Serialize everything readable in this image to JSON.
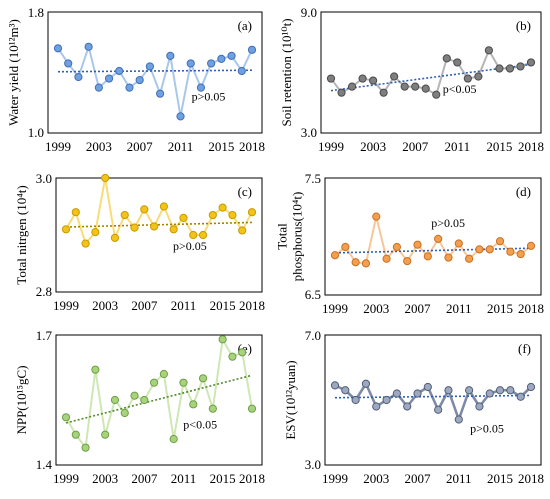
{
  "figure": {
    "x_start": "1999",
    "x_end": "2018"
  },
  "chart_data": [
    {
      "type": "line",
      "panel": "(a)",
      "ylabel": "Water yield (10¹²m³)",
      "ylim": [
        1.0,
        1.8
      ],
      "yticks": [
        "1.8",
        "1.0"
      ],
      "xticks": [
        "1999",
        "2003",
        "2007",
        "2011",
        "2015",
        "2018"
      ],
      "x": [
        1999,
        2000,
        2001,
        2002,
        2003,
        2004,
        2005,
        2006,
        2007,
        2008,
        2009,
        2010,
        2011,
        2012,
        2013,
        2014,
        2015,
        2016,
        2017,
        2018
      ],
      "y": [
        1.56,
        1.46,
        1.37,
        1.57,
        1.3,
        1.36,
        1.41,
        1.3,
        1.35,
        1.44,
        1.26,
        1.51,
        1.11,
        1.46,
        1.3,
        1.46,
        1.49,
        1.51,
        1.41,
        1.55
      ],
      "trend": [
        1.405,
        1.415
      ],
      "annotation": "p>0.05",
      "colors": {
        "marker_fill": "#6fa0e0",
        "marker_edge": "#3f6fb8",
        "line": "#a9c7ea",
        "trend": "#2f5fb3"
      }
    },
    {
      "type": "line",
      "panel": "(b)",
      "ylabel": "Soil retention (10¹⁰t)",
      "ylim": [
        3.0,
        9.0
      ],
      "yticks": [
        "9.0",
        "3.0"
      ],
      "xticks": [
        "1999",
        "2003",
        "2007",
        "2011",
        "2015",
        "2018"
      ],
      "x": [
        1999,
        2000,
        2001,
        2002,
        2003,
        2004,
        2005,
        2006,
        2007,
        2008,
        2009,
        2010,
        2011,
        2012,
        2013,
        2014,
        2015,
        2016,
        2017,
        2018
      ],
      "y": [
        5.7,
        5.0,
        5.3,
        5.7,
        5.6,
        5.0,
        5.8,
        5.3,
        5.3,
        5.2,
        4.9,
        6.7,
        6.5,
        5.7,
        5.8,
        7.1,
        6.2,
        6.2,
        6.3,
        6.5
      ],
      "trend": [
        5.1,
        6.4
      ],
      "annotation": "p<0.05",
      "colors": {
        "marker_fill": "#7f7f7f",
        "marker_edge": "#4a4a4a",
        "line": "#b5b5b5",
        "trend": "#2f5fb3"
      }
    },
    {
      "type": "line",
      "panel": "(c)",
      "ylabel": "Total nitrgen (10⁴t)",
      "ylim": [
        2.8,
        3.0
      ],
      "yticks": [
        "3.0",
        "2.8"
      ],
      "xticks": [
        "1999",
        "2003",
        "2007",
        "2011",
        "2015",
        "2018"
      ],
      "x": [
        1999,
        2000,
        2001,
        2002,
        2003,
        2004,
        2005,
        2006,
        2007,
        2008,
        2009,
        2010,
        2011,
        2012,
        2013,
        2014,
        2015,
        2016,
        2017,
        2018
      ],
      "y": [
        2.91,
        2.94,
        2.885,
        2.905,
        3.0,
        2.895,
        2.935,
        2.913,
        2.945,
        2.915,
        2.95,
        2.91,
        2.93,
        2.9,
        2.9,
        2.935,
        2.948,
        2.935,
        2.908,
        2.94
      ],
      "trend": [
        2.914,
        2.922
      ],
      "annotation": "p>0.05",
      "colors": {
        "marker_fill": "#f2c318",
        "marker_edge": "#c99a00",
        "line": "#f8dc7a",
        "trend": "#a08000"
      }
    },
    {
      "type": "line",
      "panel": "(d)",
      "ylabel_lines": [
        "Total",
        "phosphorus(10⁴t)"
      ],
      "ylim": [
        6.5,
        7.5
      ],
      "yticks": [
        "7.5",
        "6.5"
      ],
      "xticks": [
        "1999",
        "2003",
        "2007",
        "2011",
        "2015",
        "2018"
      ],
      "x": [
        1999,
        2000,
        2001,
        2002,
        2003,
        2004,
        2005,
        2006,
        2007,
        2008,
        2009,
        2010,
        2011,
        2012,
        2013,
        2014,
        2015,
        2016,
        2017,
        2018
      ],
      "y": [
        6.84,
        6.91,
        6.78,
        6.77,
        7.17,
        6.81,
        6.91,
        6.79,
        6.93,
        6.83,
        6.98,
        6.82,
        6.94,
        6.81,
        6.89,
        6.89,
        6.96,
        6.87,
        6.85,
        6.92
      ],
      "trend": [
        6.86,
        6.9
      ],
      "annotation": "p>0.05",
      "colors": {
        "marker_fill": "#f2a050",
        "marker_edge": "#cc6f20",
        "line": "#f7c79a",
        "trend": "#2f5fb3"
      }
    },
    {
      "type": "line",
      "panel": "(e)",
      "ylabel": "NPP(10¹⁵gC)",
      "ylim": [
        1.4,
        1.7
      ],
      "yticks": [
        "1.7",
        "1.4"
      ],
      "xticks": [
        "1999",
        "2003",
        "2007",
        "2011",
        "2015",
        "2018"
      ],
      "x": [
        1999,
        2000,
        2001,
        2002,
        2003,
        2004,
        2005,
        2006,
        2007,
        2008,
        2009,
        2010,
        2011,
        2012,
        2013,
        2014,
        2015,
        2016,
        2017,
        2018
      ],
      "y": [
        1.51,
        1.47,
        1.44,
        1.62,
        1.47,
        1.55,
        1.52,
        1.56,
        1.55,
        1.59,
        1.61,
        1.46,
        1.59,
        1.54,
        1.6,
        1.53,
        1.69,
        1.65,
        1.66,
        1.53
      ],
      "trend": [
        1.497,
        1.607
      ],
      "annotation": "p<0.05",
      "colors": {
        "marker_fill": "#a7d37c",
        "marker_edge": "#6f9e45",
        "line": "#cfe7b3",
        "trend": "#4f8a2a"
      }
    },
    {
      "type": "line",
      "panel": "(f)",
      "ylabel": "ESV(10¹²yuan)",
      "ylim": [
        3.0,
        7.0
      ],
      "yticks": [
        "7.0",
        "3.0"
      ],
      "xticks": [
        "1999",
        "2003",
        "2007",
        "2011",
        "2015",
        "2018"
      ],
      "x": [
        1999,
        2000,
        2001,
        2002,
        2003,
        2004,
        2005,
        2006,
        2007,
        2008,
        2009,
        2010,
        2011,
        2012,
        2013,
        2014,
        2015,
        2016,
        2017,
        2018
      ],
      "y": [
        5.45,
        5.3,
        5.0,
        5.5,
        4.8,
        5.0,
        5.2,
        4.8,
        5.2,
        5.4,
        4.7,
        5.3,
        4.4,
        5.3,
        4.8,
        5.2,
        5.3,
        5.3,
        5.1,
        5.4
      ],
      "trend": [
        5.07,
        5.14
      ],
      "annotation": "p>0.05",
      "colors": {
        "marker_fill": "#9ea9c0",
        "marker_edge": "#4f5d7a",
        "line": "#7e8aa6",
        "trend": "#2f5fb3"
      }
    }
  ]
}
